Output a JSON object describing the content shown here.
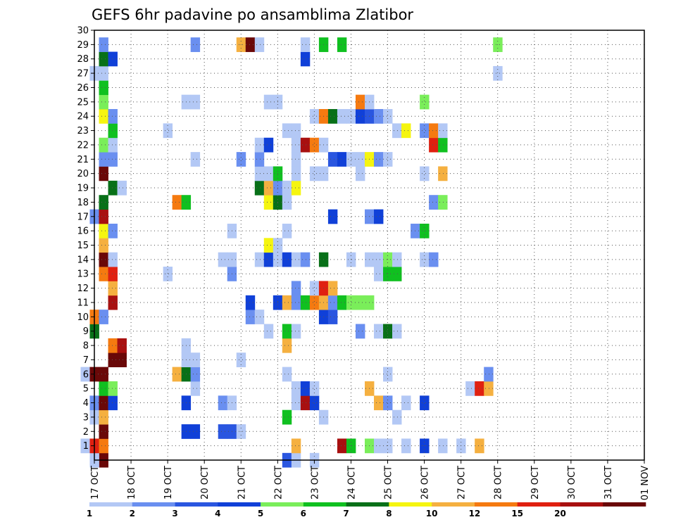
{
  "chart_data": {
    "type": "heatmap",
    "title": "GEFS 6hr padavine po ansamblima Zlatibor",
    "x_ticks": [
      "17 OCT",
      "18 OCT",
      "19 OCT",
      "20 OCT",
      "21 OCT",
      "22 OCT",
      "23 OCT",
      "24 OCT",
      "25 OCT",
      "26 OCT",
      "27 OCT",
      "28 OCT",
      "29 OCT",
      "30 OCT",
      "31 OCT",
      "01 NOV"
    ],
    "x_range": [
      "17 OCT 00Z",
      "01 NOV 00Z"
    ],
    "step_hours": 6,
    "y_ticks": [
      1,
      2,
      3,
      4,
      5,
      6,
      7,
      8,
      9,
      10,
      11,
      12,
      13,
      14,
      15,
      16,
      17,
      18,
      19,
      20,
      21,
      22,
      23,
      24,
      25,
      26,
      27,
      28,
      29,
      30
    ],
    "ylim": [
      0,
      30
    ],
    "grid": true,
    "colorbar": {
      "levels": [
        "1",
        "2",
        "3",
        "4",
        "5",
        "6",
        "7",
        "8",
        "10",
        "12",
        "15",
        "20"
      ],
      "colors": [
        "#b3c8f5",
        "#6a8ff0",
        "#2a56e0",
        "#1040d8",
        "#7aee5a",
        "#10c020",
        "#087018",
        "#f5f510",
        "#f5b040",
        "#f57a10",
        "#e02010",
        "#a81010",
        "#6a0808"
      ]
    },
    "cells": [
      [
        17.25,
        0,
        "#6a0808"
      ],
      [
        17.0,
        0,
        "#b3c8f5"
      ],
      [
        22.25,
        0,
        "#2a56e0"
      ],
      [
        22.5,
        0,
        "#b3c8f5"
      ],
      [
        23.0,
        0,
        "#b3c8f5"
      ],
      [
        16.75,
        1,
        "#b3c8f5"
      ],
      [
        17.0,
        1,
        "#e02010"
      ],
      [
        17.25,
        1,
        "#f57a10"
      ],
      [
        22.5,
        1,
        "#f5b040"
      ],
      [
        23.75,
        1,
        "#a81010"
      ],
      [
        24.0,
        1,
        "#10c020"
      ],
      [
        24.5,
        1,
        "#7aee5a"
      ],
      [
        24.75,
        1,
        "#b3c8f5"
      ],
      [
        25.0,
        1,
        "#b3c8f5"
      ],
      [
        25.5,
        1,
        "#b3c8f5"
      ],
      [
        26.0,
        1,
        "#1040d8"
      ],
      [
        26.5,
        1,
        "#b3c8f5"
      ],
      [
        27.0,
        1,
        "#b3c8f5"
      ],
      [
        27.5,
        1,
        "#f5b040"
      ],
      [
        17.25,
        2,
        "#6a0808"
      ],
      [
        19.5,
        2,
        "#1040d8"
      ],
      [
        19.75,
        2,
        "#1040d8"
      ],
      [
        20.5,
        2,
        "#2a56e0"
      ],
      [
        20.75,
        2,
        "#2a56e0"
      ],
      [
        21.0,
        2,
        "#b3c8f5"
      ],
      [
        17.0,
        3,
        "#b3c8f5"
      ],
      [
        17.25,
        3,
        "#f5b040"
      ],
      [
        22.25,
        3,
        "#10c020"
      ],
      [
        23.25,
        3,
        "#b3c8f5"
      ],
      [
        25.25,
        3,
        "#b3c8f5"
      ],
      [
        17.0,
        4,
        "#6a8ff0"
      ],
      [
        17.25,
        4,
        "#6a0808"
      ],
      [
        17.5,
        4,
        "#1040d8"
      ],
      [
        19.5,
        4,
        "#1040d8"
      ],
      [
        20.5,
        4,
        "#6a8ff0"
      ],
      [
        20.75,
        4,
        "#b3c8f5"
      ],
      [
        22.5,
        4,
        "#b3c8f5"
      ],
      [
        22.75,
        4,
        "#a81010"
      ],
      [
        23.0,
        4,
        "#1040d8"
      ],
      [
        24.75,
        4,
        "#f5b040"
      ],
      [
        25.0,
        4,
        "#6a8ff0"
      ],
      [
        25.5,
        4,
        "#b3c8f5"
      ],
      [
        26.0,
        4,
        "#1040d8"
      ],
      [
        17.25,
        5,
        "#10c020"
      ],
      [
        17.5,
        5,
        "#7aee5a"
      ],
      [
        19.75,
        5,
        "#b3c8f5"
      ],
      [
        22.5,
        5,
        "#b3c8f5"
      ],
      [
        22.75,
        5,
        "#1040d8"
      ],
      [
        23.0,
        5,
        "#b3c8f5"
      ],
      [
        24.5,
        5,
        "#f5b040"
      ],
      [
        27.25,
        5,
        "#b3c8f5"
      ],
      [
        27.5,
        5,
        "#e02010"
      ],
      [
        27.75,
        5,
        "#f5b040"
      ],
      [
        16.75,
        6,
        "#b3c8f5"
      ],
      [
        17.0,
        6,
        "#6a0808"
      ],
      [
        17.25,
        6,
        "#6a0808"
      ],
      [
        19.25,
        6,
        "#f5b040"
      ],
      [
        19.5,
        6,
        "#087018"
      ],
      [
        19.75,
        6,
        "#6a8ff0"
      ],
      [
        22.25,
        6,
        "#b3c8f5"
      ],
      [
        25.0,
        6,
        "#b3c8f5"
      ],
      [
        27.75,
        6,
        "#6a8ff0"
      ],
      [
        17.5,
        7,
        "#6a0808"
      ],
      [
        17.75,
        7,
        "#6a0808"
      ],
      [
        19.5,
        7,
        "#b3c8f5"
      ],
      [
        19.75,
        7,
        "#b3c8f5"
      ],
      [
        21.0,
        7,
        "#b3c8f5"
      ],
      [
        17.5,
        8,
        "#f57a10"
      ],
      [
        17.75,
        8,
        "#a81010"
      ],
      [
        19.5,
        8,
        "#b3c8f5"
      ],
      [
        22.25,
        8,
        "#f5b040"
      ],
      [
        17.0,
        9,
        "#087018"
      ],
      [
        21.75,
        9,
        "#b3c8f5"
      ],
      [
        22.25,
        9,
        "#10c020"
      ],
      [
        22.5,
        9,
        "#b3c8f5"
      ],
      [
        24.25,
        9,
        "#6a8ff0"
      ],
      [
        24.75,
        9,
        "#b3c8f5"
      ],
      [
        25.0,
        9,
        "#087018"
      ],
      [
        25.25,
        9,
        "#b3c8f5"
      ],
      [
        17.0,
        10,
        "#f57a10"
      ],
      [
        17.25,
        10,
        "#6a8ff0"
      ],
      [
        21.25,
        10,
        "#6a8ff0"
      ],
      [
        21.5,
        10,
        "#b3c8f5"
      ],
      [
        23.25,
        10,
        "#1040d8"
      ],
      [
        23.5,
        10,
        "#2a56e0"
      ],
      [
        17.5,
        11,
        "#a81010"
      ],
      [
        21.25,
        11,
        "#1040d8"
      ],
      [
        22.0,
        11,
        "#1040d8"
      ],
      [
        22.25,
        11,
        "#f5b040"
      ],
      [
        22.5,
        11,
        "#6a8ff0"
      ],
      [
        22.75,
        11,
        "#10c020"
      ],
      [
        23.0,
        11,
        "#f57a10"
      ],
      [
        23.25,
        11,
        "#f5b040"
      ],
      [
        23.5,
        11,
        "#6a8ff0"
      ],
      [
        23.75,
        11,
        "#10c020"
      ],
      [
        24.0,
        11,
        "#7aee5a"
      ],
      [
        24.25,
        11,
        "#7aee5a"
      ],
      [
        24.5,
        11,
        "#7aee5a"
      ],
      [
        17.5,
        12,
        "#f5b040"
      ],
      [
        22.5,
        12,
        "#6a8ff0"
      ],
      [
        23.0,
        12,
        "#b3c8f5"
      ],
      [
        23.25,
        12,
        "#e02010"
      ],
      [
        23.5,
        12,
        "#f5b040"
      ],
      [
        17.25,
        13,
        "#f57a10"
      ],
      [
        17.5,
        13,
        "#e02010"
      ],
      [
        19.0,
        13,
        "#b3c8f5"
      ],
      [
        20.75,
        13,
        "#6a8ff0"
      ],
      [
        24.75,
        13,
        "#b3c8f5"
      ],
      [
        25.0,
        13,
        "#10c020"
      ],
      [
        25.25,
        13,
        "#10c020"
      ],
      [
        17.25,
        14,
        "#6a0808"
      ],
      [
        17.5,
        14,
        "#b3c8f5"
      ],
      [
        20.5,
        14,
        "#b3c8f5"
      ],
      [
        20.75,
        14,
        "#b3c8f5"
      ],
      [
        21.5,
        14,
        "#b3c8f5"
      ],
      [
        21.75,
        14,
        "#1040d8"
      ],
      [
        22.0,
        14,
        "#b3c8f5"
      ],
      [
        22.25,
        14,
        "#1040d8"
      ],
      [
        22.5,
        14,
        "#b3c8f5"
      ],
      [
        22.75,
        14,
        "#6a8ff0"
      ],
      [
        23.25,
        14,
        "#087018"
      ],
      [
        24.0,
        14,
        "#b3c8f5"
      ],
      [
        24.5,
        14,
        "#b3c8f5"
      ],
      [
        24.75,
        14,
        "#b3c8f5"
      ],
      [
        25.0,
        14,
        "#7aee5a"
      ],
      [
        25.25,
        14,
        "#b3c8f5"
      ],
      [
        26.0,
        14,
        "#b3c8f5"
      ],
      [
        26.25,
        14,
        "#6a8ff0"
      ],
      [
        17.25,
        15,
        "#f5b040"
      ],
      [
        21.75,
        15,
        "#f5f510"
      ],
      [
        22.0,
        15,
        "#b3c8f5"
      ],
      [
        17.25,
        16,
        "#f5f510"
      ],
      [
        17.5,
        16,
        "#6a8ff0"
      ],
      [
        20.75,
        16,
        "#b3c8f5"
      ],
      [
        22.25,
        16,
        "#b3c8f5"
      ],
      [
        25.75,
        16,
        "#6a8ff0"
      ],
      [
        26.0,
        16,
        "#10c020"
      ],
      [
        17.0,
        17,
        "#6a8ff0"
      ],
      [
        17.25,
        17,
        "#a81010"
      ],
      [
        23.5,
        17,
        "#1040d8"
      ],
      [
        24.5,
        17,
        "#6a8ff0"
      ],
      [
        24.75,
        17,
        "#1040d8"
      ],
      [
        17.25,
        18,
        "#087018"
      ],
      [
        19.25,
        18,
        "#f57a10"
      ],
      [
        19.5,
        18,
        "#10c020"
      ],
      [
        21.75,
        18,
        "#f5f510"
      ],
      [
        22.0,
        18,
        "#087018"
      ],
      [
        22.25,
        18,
        "#b3c8f5"
      ],
      [
        26.25,
        18,
        "#6a8ff0"
      ],
      [
        26.5,
        18,
        "#7aee5a"
      ],
      [
        17.5,
        19,
        "#087018"
      ],
      [
        17.75,
        19,
        "#b3c8f5"
      ],
      [
        21.5,
        19,
        "#087018"
      ],
      [
        21.75,
        19,
        "#f5b040"
      ],
      [
        22.0,
        19,
        "#6a8ff0"
      ],
      [
        22.25,
        19,
        "#b3c8f5"
      ],
      [
        22.5,
        19,
        "#f5f510"
      ],
      [
        17.25,
        20,
        "#6a0808"
      ],
      [
        21.5,
        20,
        "#b3c8f5"
      ],
      [
        21.75,
        20,
        "#b3c8f5"
      ],
      [
        22.0,
        20,
        "#10c020"
      ],
      [
        22.5,
        20,
        "#b3c8f5"
      ],
      [
        23.0,
        20,
        "#b3c8f5"
      ],
      [
        23.25,
        20,
        "#b3c8f5"
      ],
      [
        24.25,
        20,
        "#b3c8f5"
      ],
      [
        26.0,
        20,
        "#b3c8f5"
      ],
      [
        26.5,
        20,
        "#f5b040"
      ],
      [
        17.25,
        21,
        "#6a8ff0"
      ],
      [
        17.5,
        21,
        "#6a8ff0"
      ],
      [
        19.75,
        21,
        "#b3c8f5"
      ],
      [
        21.0,
        21,
        "#6a8ff0"
      ],
      [
        21.5,
        21,
        "#6a8ff0"
      ],
      [
        22.5,
        21,
        "#b3c8f5"
      ],
      [
        23.5,
        21,
        "#2a56e0"
      ],
      [
        23.75,
        21,
        "#1040d8"
      ],
      [
        24.0,
        21,
        "#b3c8f5"
      ],
      [
        24.25,
        21,
        "#b3c8f5"
      ],
      [
        24.5,
        21,
        "#f5f510"
      ],
      [
        24.75,
        21,
        "#6a8ff0"
      ],
      [
        25.0,
        21,
        "#b3c8f5"
      ],
      [
        17.25,
        22,
        "#7aee5a"
      ],
      [
        17.5,
        22,
        "#b3c8f5"
      ],
      [
        21.5,
        22,
        "#b3c8f5"
      ],
      [
        21.75,
        22,
        "#1040d8"
      ],
      [
        22.5,
        22,
        "#b3c8f5"
      ],
      [
        22.75,
        22,
        "#a81010"
      ],
      [
        23.0,
        22,
        "#f57a10"
      ],
      [
        23.25,
        22,
        "#b3c8f5"
      ],
      [
        26.25,
        22,
        "#e02010"
      ],
      [
        26.5,
        22,
        "#10c020"
      ],
      [
        17.5,
        23,
        "#10c020"
      ],
      [
        19.0,
        23,
        "#b3c8f5"
      ],
      [
        22.25,
        23,
        "#b3c8f5"
      ],
      [
        22.5,
        23,
        "#b3c8f5"
      ],
      [
        25.25,
        23,
        "#b3c8f5"
      ],
      [
        25.5,
        23,
        "#f5f510"
      ],
      [
        26.0,
        23,
        "#6a8ff0"
      ],
      [
        26.25,
        23,
        "#f57a10"
      ],
      [
        26.5,
        23,
        "#b3c8f5"
      ],
      [
        17.25,
        24,
        "#f5f510"
      ],
      [
        17.5,
        24,
        "#6a8ff0"
      ],
      [
        23.0,
        24,
        "#b3c8f5"
      ],
      [
        23.25,
        24,
        "#f57a10"
      ],
      [
        23.5,
        24,
        "#087018"
      ],
      [
        23.75,
        24,
        "#b3c8f5"
      ],
      [
        24.0,
        24,
        "#b3c8f5"
      ],
      [
        24.25,
        24,
        "#1040d8"
      ],
      [
        24.5,
        24,
        "#2a56e0"
      ],
      [
        24.75,
        24,
        "#6a8ff0"
      ],
      [
        25.0,
        24,
        "#b3c8f5"
      ],
      [
        17.25,
        25,
        "#7aee5a"
      ],
      [
        19.5,
        25,
        "#b3c8f5"
      ],
      [
        19.75,
        25,
        "#b3c8f5"
      ],
      [
        21.75,
        25,
        "#b3c8f5"
      ],
      [
        22.0,
        25,
        "#b3c8f5"
      ],
      [
        24.25,
        25,
        "#f57a10"
      ],
      [
        24.5,
        25,
        "#b3c8f5"
      ],
      [
        26.0,
        25,
        "#7aee5a"
      ],
      [
        17.25,
        26,
        "#10c020"
      ],
      [
        17.0,
        27,
        "#b3c8f5"
      ],
      [
        17.25,
        27,
        "#b3c8f5"
      ],
      [
        28.0,
        27,
        "#b3c8f5"
      ],
      [
        17.25,
        28,
        "#087018"
      ],
      [
        17.5,
        28,
        "#1040d8"
      ],
      [
        22.75,
        28,
        "#1040d8"
      ],
      [
        17.25,
        29,
        "#6a8ff0"
      ],
      [
        19.75,
        29,
        "#6a8ff0"
      ],
      [
        21.0,
        29,
        "#f5b040"
      ],
      [
        21.25,
        29,
        "#6a0808"
      ],
      [
        21.5,
        29,
        "#b3c8f5"
      ],
      [
        22.75,
        29,
        "#b3c8f5"
      ],
      [
        23.25,
        29,
        "#10c020"
      ],
      [
        23.75,
        29,
        "#10c020"
      ],
      [
        28.0,
        29,
        "#7aee5a"
      ]
    ]
  }
}
